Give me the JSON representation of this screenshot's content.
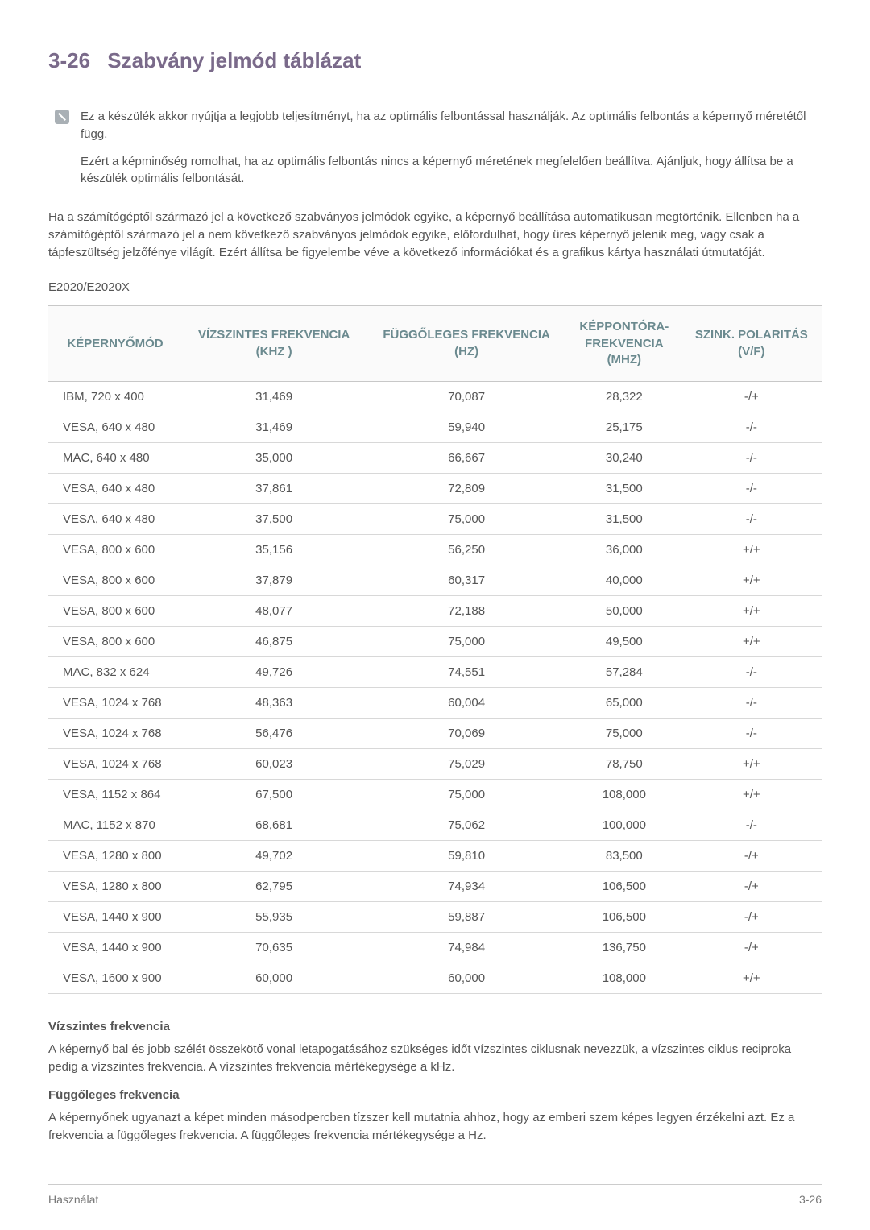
{
  "heading": {
    "number": "3-26",
    "title": "Szabvány jelmód táblázat"
  },
  "note": {
    "p1": "Ez a készülék akkor nyújtja a legjobb teljesítményt, ha az optimális felbontással használják. Az optimális felbontás a képernyő méretétől függ.",
    "p2": "Ezért a képminőség romolhat, ha az optimális felbontás nincs a képernyő méretének megfelelően beállítva. Ajánljuk, hogy állítsa be a készülék optimális felbontását."
  },
  "intro": "Ha a számítógéptől származó jel a következő szabványos jelmódok egyike, a képernyő beállítása automatikusan megtörténik. Ellenben ha a számítógéptől származó jel a nem következő szabványos jelmódok egyike, előfordulhat, hogy üres képernyő jelenik meg, vagy csak a tápfeszültség jelzőfénye világít. Ezért állítsa be figyelembe véve a következő információkat és a grafikus kártya használati útmutatóját.",
  "model": "E2020/E2020X",
  "table": {
    "columns": [
      "KÉPERNYŐMÓD",
      "VÍZSZINTES FREKVENCIA (KHZ )",
      "FÜGGŐLEGES FREKVENCIA (HZ)",
      "KÉPPONTÓRA-FREKVENCIA (MHZ)",
      "SZINK. POLARITÁS (V/F)"
    ],
    "header_color": "#6b8a8f",
    "border_color": "#d8d8d8",
    "rows": [
      [
        "IBM, 720 x 400",
        "31,469",
        "70,087",
        "28,322",
        "-/+"
      ],
      [
        "VESA, 640 x 480",
        "31,469",
        "59,940",
        "25,175",
        "-/-"
      ],
      [
        "MAC, 640 x 480",
        "35,000",
        "66,667",
        "30,240",
        "-/-"
      ],
      [
        "VESA, 640 x 480",
        "37,861",
        "72,809",
        "31,500",
        "-/-"
      ],
      [
        "VESA, 640 x 480",
        "37,500",
        "75,000",
        "31,500",
        "-/-"
      ],
      [
        "VESA, 800 x 600",
        "35,156",
        "56,250",
        "36,000",
        "+/+"
      ],
      [
        "VESA, 800 x 600",
        "37,879",
        "60,317",
        "40,000",
        "+/+"
      ],
      [
        "VESA, 800 x 600",
        "48,077",
        "72,188",
        "50,000",
        "+/+"
      ],
      [
        "VESA, 800 x 600",
        "46,875",
        "75,000",
        "49,500",
        "+/+"
      ],
      [
        "MAC, 832 x 624",
        "49,726",
        "74,551",
        "57,284",
        "-/-"
      ],
      [
        "VESA, 1024 x 768",
        "48,363",
        "60,004",
        "65,000",
        "-/-"
      ],
      [
        "VESA, 1024 x 768",
        "56,476",
        "70,069",
        "75,000",
        "-/-"
      ],
      [
        "VESA, 1024 x 768",
        "60,023",
        "75,029",
        "78,750",
        "+/+"
      ],
      [
        "VESA, 1152 x 864",
        "67,500",
        "75,000",
        "108,000",
        "+/+"
      ],
      [
        "MAC, 1152 x 870",
        "68,681",
        "75,062",
        "100,000",
        "-/-"
      ],
      [
        "VESA, 1280 x 800",
        "49,702",
        "59,810",
        "83,500",
        "-/+"
      ],
      [
        "VESA, 1280 x 800",
        "62,795",
        "74,934",
        "106,500",
        "-/+"
      ],
      [
        "VESA, 1440 x 900",
        "55,935",
        "59,887",
        "106,500",
        "-/+"
      ],
      [
        "VESA, 1440 x 900",
        "70,635",
        "74,984",
        "136,750",
        "-/+"
      ],
      [
        "VESA, 1600 x 900",
        "60,000",
        "60,000",
        "108,000",
        "+/+"
      ]
    ]
  },
  "defs": {
    "h1": "Vízszintes frekvencia",
    "p1": "A képernyő bal és jobb szélét összekötő vonal letapogatásához szükséges időt vízszintes ciklusnak nevezzük, a vízszintes ciklus reciproka pedig a vízszintes frekvencia. A vízszintes frekvencia mértékegysége a kHz.",
    "h2": "Függőleges frekvencia",
    "p2": "A képernyőnek ugyanazt a képet minden másodpercben tízszer kell mutatnia ahhoz, hogy az emberi szem képes legyen érzékelni azt. Ez a frekvencia a függőleges frekvencia. A függőleges frekvencia mértékegysége a Hz."
  },
  "footer": {
    "left": "Használat",
    "right": "3-26"
  },
  "colors": {
    "heading": "#7a6a8a",
    "body_text": "#555555",
    "rule": "#cccccc"
  }
}
